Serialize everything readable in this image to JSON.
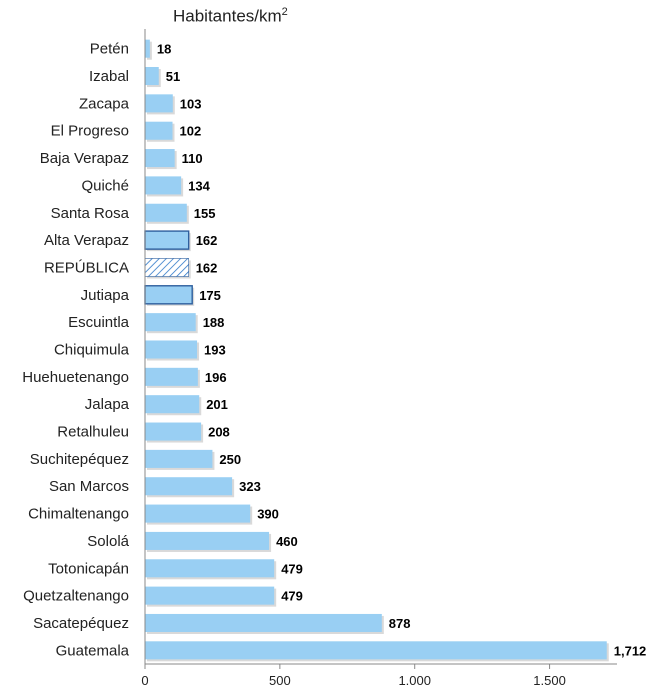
{
  "chart_data": {
    "type": "bar",
    "orientation": "horizontal",
    "unit_label": "Habitantes/km",
    "unit_superscript": "2",
    "categories": [
      "Petén",
      "Izabal",
      "Zacapa",
      "El Progreso",
      "Baja Verapaz",
      "Quiché",
      "Santa Rosa",
      "Alta Verapaz",
      "REPÚBLICA",
      "Jutiapa",
      "Escuintla",
      "Chiquimula",
      "Huehuetenango",
      "Jalapa",
      "Retalhuleu",
      "Suchitepéquez",
      "San Marcos",
      "Chimaltenango",
      "Sololá",
      "Totonicapán",
      "Quetzaltenango",
      "Sacatepéquez",
      "Guatemala"
    ],
    "values": [
      18,
      51,
      103,
      102,
      110,
      134,
      155,
      162,
      162,
      175,
      188,
      193,
      196,
      201,
      208,
      250,
      323,
      390,
      460,
      479,
      479,
      878,
      1712
    ],
    "value_labels": [
      "18",
      "51",
      "103",
      "102",
      "110",
      "134",
      "155",
      "162",
      "162",
      "175",
      "188",
      "193",
      "196",
      "201",
      "208",
      "250",
      "323",
      "390",
      "460",
      "479",
      "479",
      "878",
      "1,712"
    ],
    "highlighted_category": "REPÚBLICA",
    "outlined_categories": [
      "Alta Verapaz",
      "Jutiapa"
    ],
    "xlim": [
      0,
      1750
    ],
    "xticks": [
      0,
      500,
      1000,
      1500
    ],
    "xtick_labels": [
      "0",
      "500",
      "1,000",
      "1,500"
    ],
    "grid": false,
    "colors": {
      "bar": "#99cff3",
      "bar_edge": "#2e5f9e",
      "hatch": "#2e78c8",
      "value_text": "#000000",
      "axis": "#888888"
    }
  }
}
